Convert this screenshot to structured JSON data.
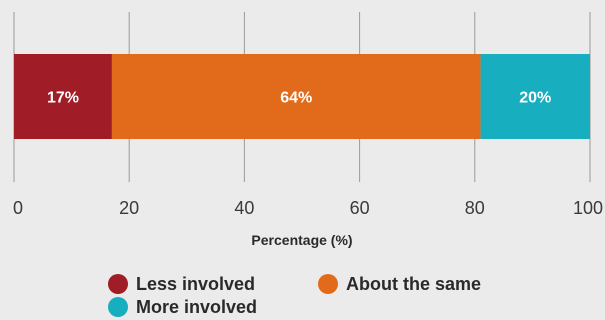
{
  "chart_data": {
    "type": "bar",
    "orientation": "horizontal",
    "stacked": true,
    "xlabel": "Percentage (%)",
    "ylabel": "",
    "xlim": [
      0,
      100
    ],
    "x_ticks": [
      "0",
      "20",
      "40",
      "60",
      "80",
      "100"
    ],
    "grid": true,
    "legend_position": "bottom",
    "series": [
      {
        "name": "Less involved",
        "value": 17,
        "label": "17%",
        "color": "#a01c26"
      },
      {
        "name": "About the same",
        "value": 64,
        "label": "64%",
        "color": "#e26b1b"
      },
      {
        "name": "More involved",
        "value": 20,
        "label": "20%",
        "color": "#17aebf"
      }
    ]
  }
}
